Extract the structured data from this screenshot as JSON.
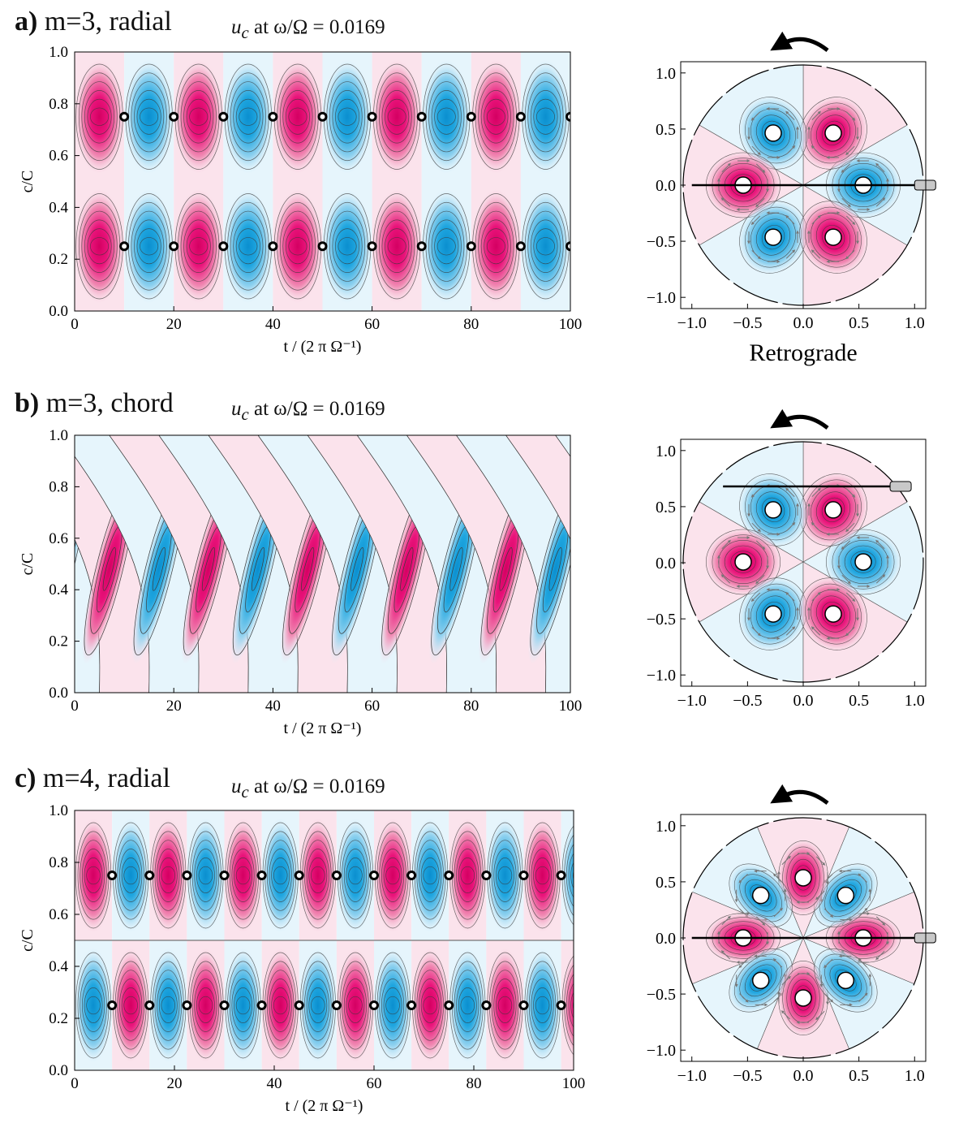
{
  "colors": {
    "pink_deep": "#e6006e",
    "pink_light": "#fbe3ec",
    "blue_deep": "#1aa3dc",
    "blue_light": "#e6f5fc",
    "contour": "#3a3a3a",
    "probe": "#c8c8c8"
  },
  "panels": [
    {
      "letter": "a)",
      "title": "m=3, radial",
      "subtitle_var": "u",
      "subtitle_sub": "c",
      "subtitle_rest": "at ω/Ω = 0.0169"
    },
    {
      "letter": "b)",
      "title": "m=3, chord",
      "subtitle_var": "u",
      "subtitle_sub": "c",
      "subtitle_rest": "at ω/Ω = 0.0169"
    },
    {
      "letter": "c)",
      "title": "m=4, radial",
      "subtitle_var": "u",
      "subtitle_sub": "c",
      "subtitle_rest": "at ω/Ω = 0.0169"
    }
  ],
  "chart_data": [
    {
      "type": "heatmap",
      "panel": "a",
      "title": "m=3, radial",
      "m": 3,
      "probe": "radial",
      "xlabel": "t / (2 π Ω⁻¹)",
      "ylabel": "c/C",
      "xlim": [
        0,
        100
      ],
      "ylim": [
        0,
        1
      ],
      "xticks": [
        0,
        20,
        40,
        60,
        80,
        100
      ],
      "yticks": [
        0.0,
        0.2,
        0.4,
        0.6,
        0.8,
        1.0
      ],
      "xtick_labels": [
        "0",
        "20",
        "40",
        "60",
        "80",
        "100"
      ],
      "ytick_labels": [
        "0.0",
        "0.2",
        "0.4",
        "0.6",
        "0.8",
        "1.0"
      ],
      "vortex_rows": [
        0.25,
        0.75
      ],
      "period": 20,
      "band_width": 10
    },
    {
      "type": "heatmap",
      "panel": "b",
      "title": "m=3, chord",
      "m": 3,
      "probe": "chord",
      "xlabel": "t / (2 π Ω⁻¹)",
      "ylabel": "c/C",
      "xlim": [
        0,
        100
      ],
      "ylim": [
        0,
        1
      ],
      "xticks": [
        0,
        20,
        40,
        60,
        80,
        100
      ],
      "yticks": [
        0.0,
        0.2,
        0.4,
        0.6,
        0.8,
        1.0
      ],
      "xtick_labels": [
        "0",
        "20",
        "40",
        "60",
        "80",
        "100"
      ],
      "ytick_labels": [
        "0.0",
        "0.2",
        "0.4",
        "0.6",
        "0.8",
        "1.0"
      ],
      "period": 20
    },
    {
      "type": "heatmap",
      "panel": "c",
      "title": "m=4, radial",
      "m": 4,
      "probe": "radial",
      "xlabel": "t / (2 π Ω⁻¹)",
      "ylabel": "c/C",
      "xlim": [
        0,
        100
      ],
      "ylim": [
        0,
        1
      ],
      "xticks": [
        0,
        20,
        40,
        60,
        80,
        100
      ],
      "yticks": [
        0.0,
        0.2,
        0.4,
        0.6,
        0.8,
        1.0
      ],
      "xtick_labels": [
        "0",
        "20",
        "40",
        "60",
        "80",
        "100"
      ],
      "ytick_labels": [
        "0.0",
        "0.2",
        "0.4",
        "0.6",
        "0.8",
        "1.0"
      ],
      "vortex_rows": [
        0.25,
        0.75
      ],
      "period": 15,
      "band_width": 7.5
    },
    {
      "type": "scatter",
      "panel": "a-disk",
      "m": 3,
      "probe": "radial",
      "caption": "Retrograde",
      "xlim": [
        -1.1,
        1.1
      ],
      "ylim": [
        -1.1,
        1.1
      ],
      "ticks": [
        -1.0,
        -0.5,
        0.0,
        0.5,
        1.0
      ],
      "tick_labels": [
        "−1.0",
        "−0.5",
        "0.0",
        "0.5",
        "1.0"
      ],
      "vortex_radius": 0.5,
      "probe_y": 0.0,
      "probe_x_start": -1.0,
      "vortex_sign_start": "blue",
      "vortex_angle_start_deg": 0
    },
    {
      "type": "scatter",
      "panel": "b-disk",
      "m": 3,
      "probe": "chord",
      "xlim": [
        -1.1,
        1.1
      ],
      "ylim": [
        -1.1,
        1.1
      ],
      "ticks": [
        -1.0,
        -0.5,
        0.0,
        0.5,
        1.0
      ],
      "tick_labels": [
        "−1.0",
        "−0.5",
        "0.0",
        "0.5",
        "1.0"
      ],
      "vortex_radius": 0.5,
      "probe_y": 0.68,
      "probe_x_start": -0.72,
      "vortex_sign_start": "blue",
      "vortex_angle_start_deg": 0
    },
    {
      "type": "scatter",
      "panel": "c-disk",
      "m": 4,
      "probe": "radial",
      "xlim": [
        -1.1,
        1.1
      ],
      "ylim": [
        -1.1,
        1.1
      ],
      "ticks": [
        -1.0,
        -0.5,
        0.0,
        0.5,
        1.0
      ],
      "tick_labels": [
        "−1.0",
        "−0.5",
        "0.0",
        "0.5",
        "1.0"
      ],
      "vortex_radius": 0.5,
      "probe_y": 0.0,
      "probe_x_start": -1.0,
      "vortex_sign_start": "pink",
      "vortex_angle_start_deg": 0
    }
  ]
}
